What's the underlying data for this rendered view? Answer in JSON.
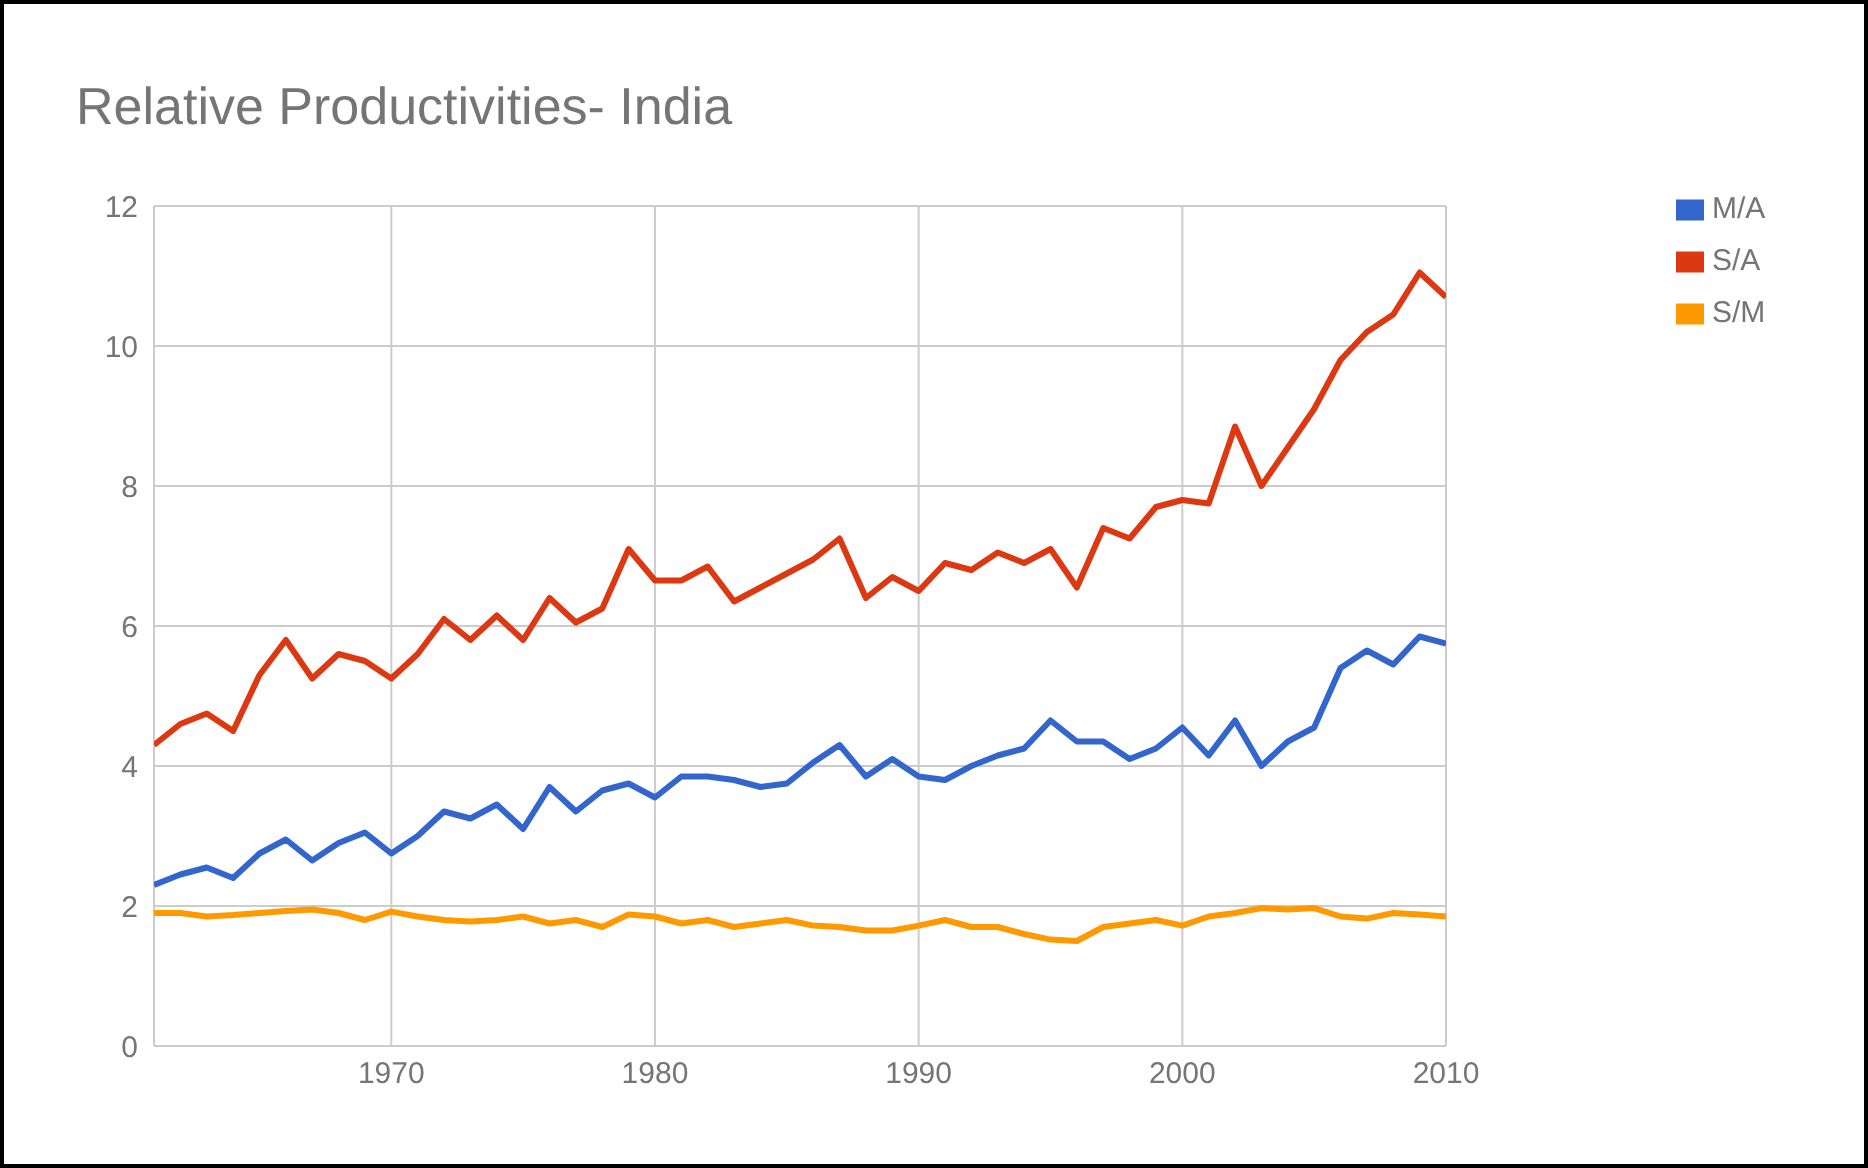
{
  "chart_data": {
    "type": "line",
    "title": "Relative Productivities- India",
    "x": [
      1961,
      1962,
      1963,
      1964,
      1965,
      1966,
      1967,
      1968,
      1969,
      1970,
      1971,
      1972,
      1973,
      1974,
      1975,
      1976,
      1977,
      1978,
      1979,
      1980,
      1981,
      1982,
      1983,
      1984,
      1985,
      1986,
      1987,
      1988,
      1989,
      1990,
      1991,
      1992,
      1993,
      1994,
      1995,
      1996,
      1997,
      1998,
      1999,
      2000,
      2001,
      2002,
      2003,
      2004,
      2005,
      2006,
      2007,
      2008,
      2009,
      2010
    ],
    "series": [
      {
        "name": "M/A",
        "color": "#3366cc",
        "values": [
          2.3,
          2.45,
          2.55,
          2.4,
          2.75,
          2.95,
          2.65,
          2.9,
          3.05,
          2.75,
          3.0,
          3.35,
          3.25,
          3.45,
          3.1,
          3.7,
          3.35,
          3.65,
          3.75,
          3.55,
          3.85,
          3.85,
          3.8,
          3.7,
          3.75,
          4.05,
          4.3,
          3.85,
          4.1,
          3.85,
          3.8,
          4.0,
          4.15,
          4.25,
          4.65,
          4.35,
          4.35,
          4.1,
          4.25,
          4.55,
          4.15,
          4.65,
          4.0,
          4.35,
          4.55,
          5.4,
          5.65,
          5.45,
          5.85,
          5.75
        ]
      },
      {
        "name": "S/A",
        "color": "#dc3912",
        "values": [
          4.3,
          4.6,
          4.75,
          4.5,
          5.3,
          5.8,
          5.25,
          5.6,
          5.5,
          5.25,
          5.6,
          6.1,
          5.8,
          6.15,
          5.8,
          6.4,
          6.05,
          6.25,
          7.1,
          6.65,
          6.65,
          6.85,
          6.35,
          6.55,
          6.75,
          6.95,
          7.25,
          6.4,
          6.7,
          6.5,
          6.9,
          6.8,
          7.05,
          6.9,
          7.1,
          6.55,
          7.4,
          7.25,
          7.7,
          7.8,
          7.75,
          8.85,
          8.0,
          8.55,
          9.1,
          9.8,
          10.2,
          10.45,
          11.05,
          10.7
        ]
      },
      {
        "name": "S/M",
        "color": "#ff9900",
        "values": [
          1.9,
          1.9,
          1.85,
          1.87,
          1.9,
          1.93,
          1.95,
          1.9,
          1.8,
          1.92,
          1.85,
          1.8,
          1.78,
          1.8,
          1.85,
          1.75,
          1.8,
          1.7,
          1.88,
          1.85,
          1.75,
          1.8,
          1.7,
          1.75,
          1.8,
          1.72,
          1.7,
          1.65,
          1.65,
          1.72,
          1.8,
          1.7,
          1.7,
          1.6,
          1.52,
          1.5,
          1.7,
          1.75,
          1.8,
          1.72,
          1.85,
          1.9,
          1.97,
          1.95,
          1.97,
          1.85,
          1.82,
          1.9,
          1.88,
          1.85
        ]
      }
    ],
    "xlim": [
      1961,
      2010
    ],
    "xticks": [
      1970,
      1980,
      1990,
      2000,
      2010
    ],
    "ylim": [
      0,
      12
    ],
    "yticks": [
      0,
      2,
      4,
      6,
      8,
      10,
      12
    ],
    "grid": true,
    "legend": "right",
    "marker": "none",
    "line_style": "solid"
  }
}
